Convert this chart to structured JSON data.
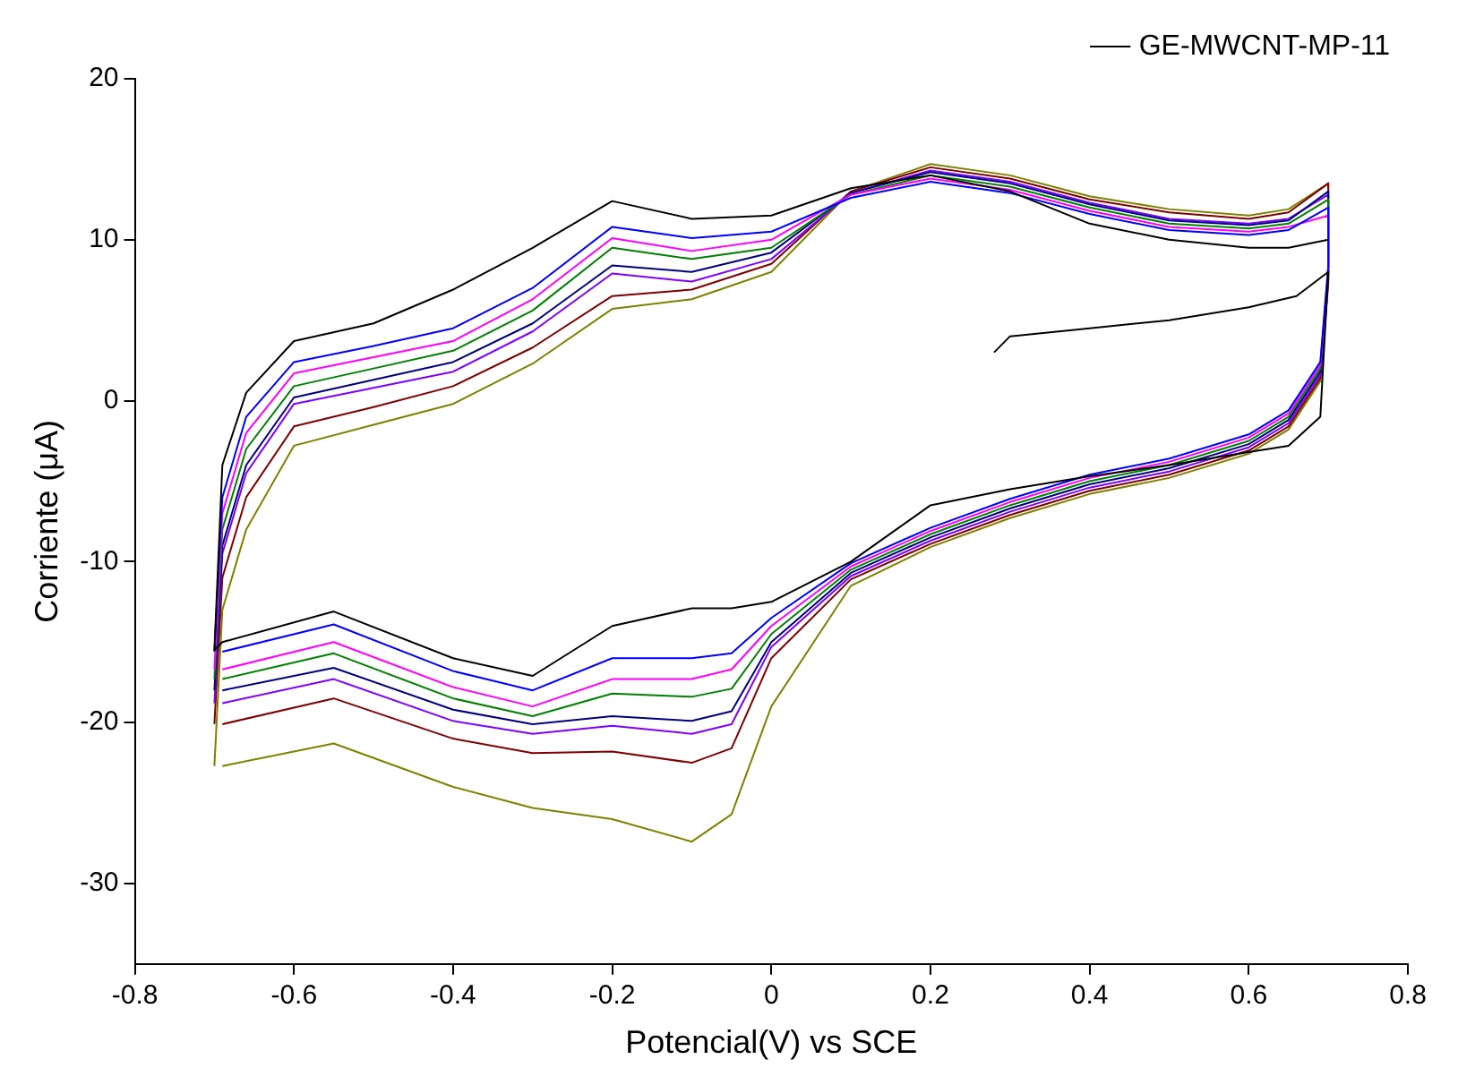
{
  "chart_data": {
    "type": "line",
    "xlabel": "Potencial(V) vs SCE",
    "ylabel": "Corriente (μA)",
    "xlim": [
      -0.8,
      0.8
    ],
    "xticks": [
      -0.8,
      -0.6,
      -0.4,
      -0.2,
      0.0,
      0.2,
      0.4,
      0.6,
      0.8
    ],
    "ylim": [
      -35,
      20
    ],
    "yticks": [
      -30,
      -20,
      -10,
      0,
      10,
      20
    ],
    "grid": false,
    "legend": "top right",
    "marker": "none",
    "line_style": "solid",
    "series": [
      {
        "name": "GE-MWCNT-MP-11",
        "color": "#000000",
        "x": [
          0.28,
          0.3,
          0.4,
          0.5,
          0.6,
          0.66,
          0.7,
          0.69,
          0.65,
          0.6,
          0.5,
          0.4,
          0.3,
          0.2,
          0.1,
          0,
          -0.05,
          -0.1,
          -0.2,
          -0.3,
          -0.4,
          -0.55,
          -0.69,
          -0.7,
          -0.69,
          -0.66,
          -0.6,
          -0.5,
          -0.4,
          -0.3,
          -0.2,
          -0.1,
          0,
          0.1,
          0.2,
          0.3,
          0.4,
          0.5,
          0.6,
          0.65,
          0.7
        ],
        "values": [
          3,
          4,
          4.5,
          5,
          5.8,
          6.5,
          8,
          -1,
          -2.8,
          -3.2,
          -4,
          -4.7,
          -5.5,
          -6.5,
          -10,
          -12.5,
          -12.9,
          -12.9,
          -14,
          -17.1,
          -16,
          -13.1,
          -15,
          -15.5,
          -4,
          0.5,
          3.7,
          4.8,
          6.9,
          9.5,
          12.4,
          11.3,
          11.5,
          13.2,
          14,
          13,
          11,
          10,
          9.5,
          9.5,
          10
        ]
      },
      {
        "color": "#0000ff",
        "x": [
          -0.7,
          -0.69,
          -0.66,
          -0.6,
          -0.5,
          -0.4,
          -0.3,
          -0.2,
          -0.1,
          0,
          0.1,
          0.2,
          0.3,
          0.4,
          0.5,
          0.6,
          0.65,
          0.7,
          0.7,
          0.69,
          0.65,
          0.6,
          0.5,
          0.4,
          0.3,
          0.2,
          0.1,
          0,
          -0.05,
          -0.1,
          -0.2,
          -0.3,
          -0.4,
          -0.55,
          -0.69
        ],
        "values": [
          -15.6,
          -6,
          -1,
          2.4,
          3.4,
          4.5,
          7,
          10.8,
          10.1,
          10.5,
          12.6,
          13.6,
          12.9,
          11.6,
          10.6,
          10.3,
          10.6,
          12,
          8.4,
          2.4,
          -0.6,
          -2.1,
          -3.6,
          -4.6,
          -6.1,
          -7.9,
          -10.1,
          -13.5,
          -15.7,
          -16,
          -16,
          -18,
          -16.8,
          -13.9,
          -15.6
        ]
      },
      {
        "color": "#ff00ff",
        "x": [
          -0.7,
          -0.69,
          -0.66,
          -0.6,
          -0.5,
          -0.4,
          -0.3,
          -0.2,
          -0.1,
          0,
          0.1,
          0.2,
          0.3,
          0.4,
          0.5,
          0.6,
          0.65,
          0.7,
          0.7,
          0.69,
          0.65,
          0.6,
          0.5,
          0.4,
          0.3,
          0.2,
          0.1,
          0,
          -0.05,
          -0.1,
          -0.2,
          -0.3,
          -0.4,
          -0.55,
          -0.69
        ],
        "values": [
          -16.7,
          -7,
          -2,
          1.7,
          2.7,
          3.7,
          6.3,
          10.1,
          9.3,
          10,
          12.8,
          13.8,
          13.1,
          11.8,
          10.8,
          10.5,
          10.8,
          11.5,
          8.2,
          2.2,
          -0.8,
          -2.3,
          -3.8,
          -4.8,
          -6.3,
          -8.1,
          -10.3,
          -14,
          -16.7,
          -17.3,
          -17.3,
          -19,
          -17.8,
          -15,
          -16.7
        ]
      },
      {
        "color": "#008000",
        "x": [
          -0.7,
          -0.69,
          -0.66,
          -0.6,
          -0.5,
          -0.4,
          -0.3,
          -0.2,
          -0.1,
          0,
          0.1,
          0.2,
          0.3,
          0.4,
          0.5,
          0.6,
          0.65,
          0.7,
          0.7,
          0.69,
          0.65,
          0.6,
          0.5,
          0.4,
          0.3,
          0.2,
          0.1,
          0,
          -0.05,
          -0.1,
          -0.2,
          -0.3,
          -0.4,
          -0.55,
          -0.69
        ],
        "values": [
          -17.3,
          -8,
          -3,
          0.9,
          2,
          3.1,
          5.6,
          9.5,
          8.8,
          9.5,
          12.8,
          14,
          13.3,
          12,
          11,
          10.7,
          11,
          12.5,
          8,
          2,
          -1,
          -2.5,
          -4,
          -5,
          -6.5,
          -8.3,
          -10.5,
          -14.5,
          -17.9,
          -18.4,
          -18.2,
          -19.6,
          -18.5,
          -15.7,
          -17.3
        ]
      },
      {
        "color": "#000080",
        "x": [
          -0.7,
          -0.69,
          -0.66,
          -0.6,
          -0.5,
          -0.4,
          -0.3,
          -0.2,
          -0.1,
          0,
          0.1,
          0.2,
          0.3,
          0.4,
          0.5,
          0.6,
          0.65,
          0.7,
          0.7,
          0.69,
          0.65,
          0.6,
          0.5,
          0.4,
          0.3,
          0.2,
          0.1,
          0,
          -0.05,
          -0.1,
          -0.2,
          -0.3,
          -0.4,
          -0.55,
          -0.69
        ],
        "values": [
          -18,
          -9,
          -4,
          0.2,
          1.3,
          2.4,
          4.8,
          8.4,
          8,
          9.2,
          12.9,
          14.2,
          13.5,
          12.2,
          11.2,
          10.9,
          11.2,
          13,
          7.8,
          1.8,
          -1.2,
          -2.7,
          -4.2,
          -5.2,
          -6.7,
          -8.5,
          -10.7,
          -15,
          -19.3,
          -19.9,
          -19.6,
          -20.1,
          -19.2,
          -16.6,
          -18
        ]
      },
      {
        "color": "#8000ff",
        "x": [
          -0.7,
          -0.69,
          -0.66,
          -0.6,
          -0.5,
          -0.4,
          -0.3,
          -0.2,
          -0.1,
          0,
          0.1,
          0.2,
          0.3,
          0.4,
          0.5,
          0.6,
          0.65,
          0.7,
          0.7,
          0.69,
          0.65,
          0.6,
          0.5,
          0.4,
          0.3,
          0.2,
          0.1,
          0,
          -0.05,
          -0.1,
          -0.2,
          -0.3,
          -0.4,
          -0.55,
          -0.69
        ],
        "values": [
          -18.8,
          -9.5,
          -4.5,
          -0.2,
          0.8,
          1.8,
          4.3,
          7.9,
          7.4,
          8.8,
          12.9,
          14.3,
          13.6,
          12.3,
          11.3,
          11,
          11.3,
          12.8,
          7.6,
          1.6,
          -1.4,
          -2.9,
          -4.4,
          -5.4,
          -6.9,
          -8.7,
          -10.9,
          -15.3,
          -20.1,
          -20.7,
          -20.2,
          -20.7,
          -19.9,
          -17.3,
          -18.8
        ]
      },
      {
        "color": "#800000",
        "x": [
          -0.7,
          -0.69,
          -0.66,
          -0.6,
          -0.5,
          -0.4,
          -0.3,
          -0.2,
          -0.1,
          0,
          0.1,
          0.2,
          0.3,
          0.4,
          0.5,
          0.6,
          0.65,
          0.7,
          0.7,
          0.69,
          0.65,
          0.6,
          0.5,
          0.4,
          0.3,
          0.2,
          0.1,
          0,
          -0.05,
          -0.1,
          -0.2,
          -0.3,
          -0.4,
          -0.55,
          -0.69
        ],
        "values": [
          -20.1,
          -11,
          -6,
          -1.6,
          -0.4,
          0.9,
          3.3,
          6.5,
          6.9,
          8.5,
          13,
          14.5,
          13.8,
          12.5,
          11.7,
          11.3,
          11.7,
          13.5,
          7.4,
          1.4,
          -1.6,
          -3.1,
          -4.6,
          -5.6,
          -7.1,
          -8.9,
          -11.1,
          -16,
          -21.6,
          -22.5,
          -21.8,
          -21.9,
          -21,
          -18.5,
          -20.1
        ]
      },
      {
        "color": "#808000",
        "x": [
          -0.7,
          -0.69,
          -0.66,
          -0.6,
          -0.5,
          -0.4,
          -0.3,
          -0.2,
          -0.1,
          0,
          0.1,
          0.2,
          0.3,
          0.4,
          0.5,
          0.6,
          0.65,
          0.7,
          0.7,
          0.69,
          0.65,
          0.6,
          0.5,
          0.4,
          0.3,
          0.2,
          0.1,
          0,
          -0.05,
          -0.1,
          -0.2,
          -0.3,
          -0.4,
          -0.55,
          -0.69
        ],
        "values": [
          -22.7,
          -13,
          -8,
          -2.8,
          -1.5,
          -0.2,
          2.3,
          5.7,
          6.3,
          8,
          13,
          14.7,
          14,
          12.7,
          11.9,
          11.5,
          11.9,
          13.5,
          7.2,
          1.2,
          -1.8,
          -3.3,
          -4.8,
          -5.8,
          -7.3,
          -9.1,
          -11.5,
          -19,
          -25.7,
          -27.4,
          -26,
          -25.3,
          -24,
          -21.3,
          -22.7
        ]
      }
    ]
  }
}
